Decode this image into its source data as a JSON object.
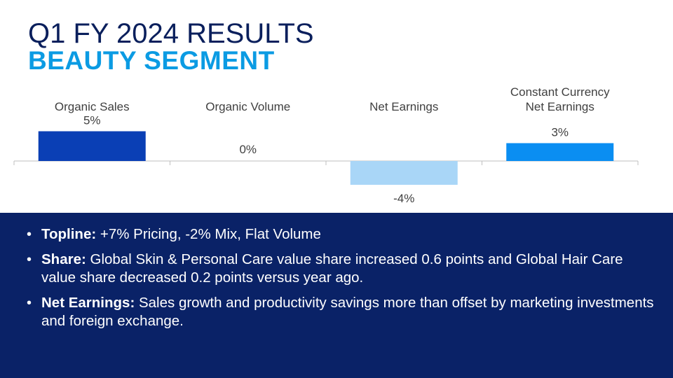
{
  "header": {
    "title": "Q1 FY 2024 RESULTS",
    "subtitle": "BEAUTY SEGMENT"
  },
  "chart_data": {
    "type": "bar",
    "categories": [
      "Organic Sales",
      "Organic Volume",
      "Net Earnings",
      "Constant Currency\nNet Earnings"
    ],
    "values": [
      5,
      0,
      -4,
      3
    ],
    "value_labels": [
      "5%",
      "0%",
      "-4%",
      "3%"
    ],
    "unit": "%",
    "colors": [
      "#0a3fb5",
      "#0a3fb5",
      "#a9d6f7",
      "#0a8ef2"
    ],
    "ylim": [
      -5,
      6
    ],
    "grid": false
  },
  "bullets": [
    {
      "label": "Topline:",
      "text": " +7% Pricing, -2% Mix, Flat Volume"
    },
    {
      "label": "Share:",
      "text": " Global Skin & Personal Care value share increased 0.6 points and Global Hair Care value share decreased 0.2 points versus year ago."
    },
    {
      "label": "Net Earnings:",
      "text": " Sales growth and productivity savings more than offset by marketing investments and foreign exchange."
    }
  ]
}
